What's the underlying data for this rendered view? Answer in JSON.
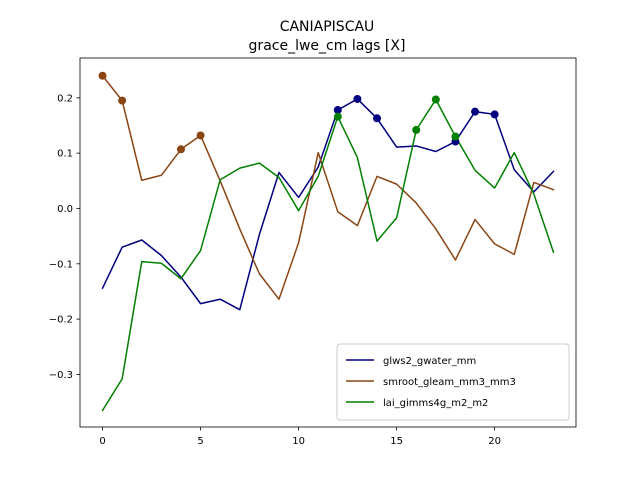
{
  "chart_data": {
    "type": "line",
    "title": "CANIAPISCAU",
    "subtitle": "grace_lwe_cm lags [X]",
    "xlabel": "",
    "ylabel": "",
    "xlim": [
      -1.15,
      24.15
    ],
    "ylim": [
      -0.395,
      0.272
    ],
    "xticks": [
      0,
      5,
      10,
      15,
      20
    ],
    "yticks": [
      -0.3,
      -0.2,
      -0.1,
      0.0,
      0.1,
      0.2
    ],
    "xtick_labels": [
      "0",
      "5",
      "10",
      "15",
      "20"
    ],
    "ytick_labels": [
      "−0.3",
      "−0.2",
      "−0.1",
      "0.0",
      "0.1",
      "0.2"
    ],
    "grid": false,
    "legend_position": "lower-right",
    "x": [
      0,
      1,
      2,
      3,
      4,
      5,
      6,
      7,
      8,
      9,
      10,
      11,
      12,
      13,
      14,
      15,
      16,
      17,
      18,
      19,
      20,
      21,
      22,
      23
    ],
    "series": [
      {
        "name": "glws2_gwater_mm",
        "color": "#000080",
        "values": [
          -0.144,
          -0.07,
          -0.057,
          -0.085,
          -0.124,
          -0.172,
          -0.164,
          -0.183,
          -0.047,
          0.065,
          0.02,
          0.075,
          0.178,
          0.198,
          0.163,
          0.111,
          0.113,
          0.103,
          0.121,
          0.175,
          0.17,
          0.07,
          0.03,
          0.067
        ],
        "markers": [
          12,
          13,
          14,
          18,
          19,
          20
        ]
      },
      {
        "name": "smroot_gleam_mm3_mm3",
        "color": "#8B4513",
        "values": [
          0.24,
          0.195,
          0.051,
          0.06,
          0.107,
          0.132,
          0.05,
          -0.037,
          -0.118,
          -0.164,
          -0.062,
          0.101,
          -0.006,
          -0.031,
          0.058,
          0.044,
          0.01,
          -0.037,
          -0.093,
          -0.02,
          -0.064,
          -0.083,
          0.047,
          0.034
        ],
        "markers": [
          0,
          1,
          4,
          5
        ]
      },
      {
        "name": "lai_gimms4g_m2_m2",
        "color": "#008000",
        "values": [
          -0.365,
          -0.308,
          -0.096,
          -0.099,
          -0.127,
          -0.076,
          0.052,
          0.073,
          0.082,
          0.056,
          -0.004,
          0.058,
          0.166,
          0.092,
          -0.059,
          -0.017,
          0.142,
          0.197,
          0.13,
          0.069,
          0.037,
          0.101,
          0.026,
          -0.079
        ],
        "markers": [
          12,
          16,
          17,
          18
        ]
      }
    ]
  }
}
